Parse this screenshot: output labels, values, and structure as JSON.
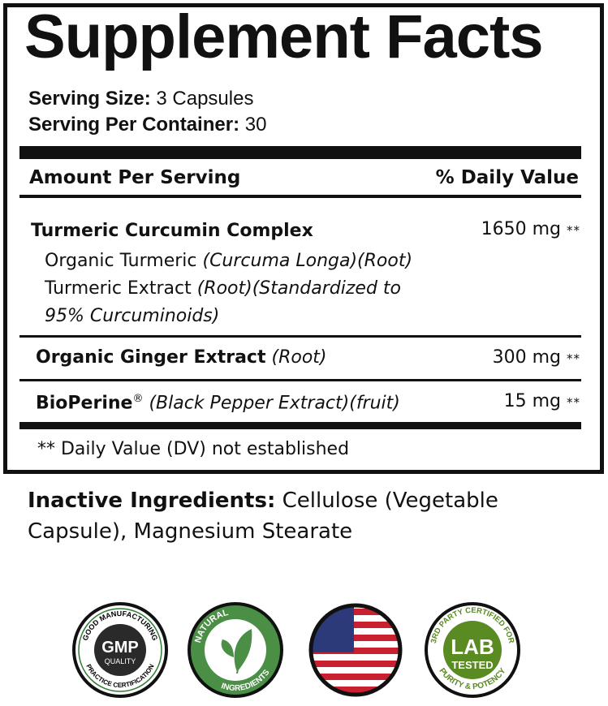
{
  "title": "Supplement Facts",
  "serving": {
    "size_label": "Serving Size:",
    "size_value": "3 Capsules",
    "per_container_label": "Serving Per Container:",
    "per_container_value": "30"
  },
  "header": {
    "amount": "Amount Per Serving",
    "dv": "% Daily Value"
  },
  "ingredients": [
    {
      "name": "Turmeric Curcumin Complex",
      "amount": "1650 mg",
      "dv": "**",
      "sub": [
        {
          "plain": "Organic Turmeric ",
          "italic": "(Curcuma Longa)(Root)"
        },
        {
          "plain": "Turmeric Extract ",
          "italic": "(Root)(Standardized to"
        },
        {
          "plain": "",
          "italic": "95% Curcuminoids)"
        }
      ]
    },
    {
      "name": "Organic Ginger Extract",
      "detail": "(Root)",
      "amount": "300 mg",
      "dv": "**"
    },
    {
      "name": "BioPerine",
      "reg": "®",
      "detail": "(Black Pepper Extract)(fruit)",
      "amount": "15 mg",
      "dv": "**"
    }
  ],
  "footnote": "** Daily Value (DV) not established",
  "inactive": {
    "label": "Inactive Ingredients:",
    "value": "Cellulose (Vegetable Capsule), Magnesium Stearate"
  },
  "badges": [
    {
      "top": "GOOD MANUFACTURING",
      "main": "GMP",
      "sub": "QUALITY",
      "bottom": "PRACTICE CERTIFICATION",
      "color": "#2e2e2e"
    },
    {
      "top": "NATURAL",
      "bottom": "INGREDIENTS",
      "icon": "leaf-icon",
      "color": "#4a8f45"
    },
    {
      "icon": "us-flag-icon",
      "color": "#c8202e"
    },
    {
      "top": "3RD PARTY CERTIFIED FOR",
      "main": "LAB",
      "sub": "TESTED",
      "bottom": "PURITY & POTENCY",
      "color": "#5a8a22"
    }
  ]
}
